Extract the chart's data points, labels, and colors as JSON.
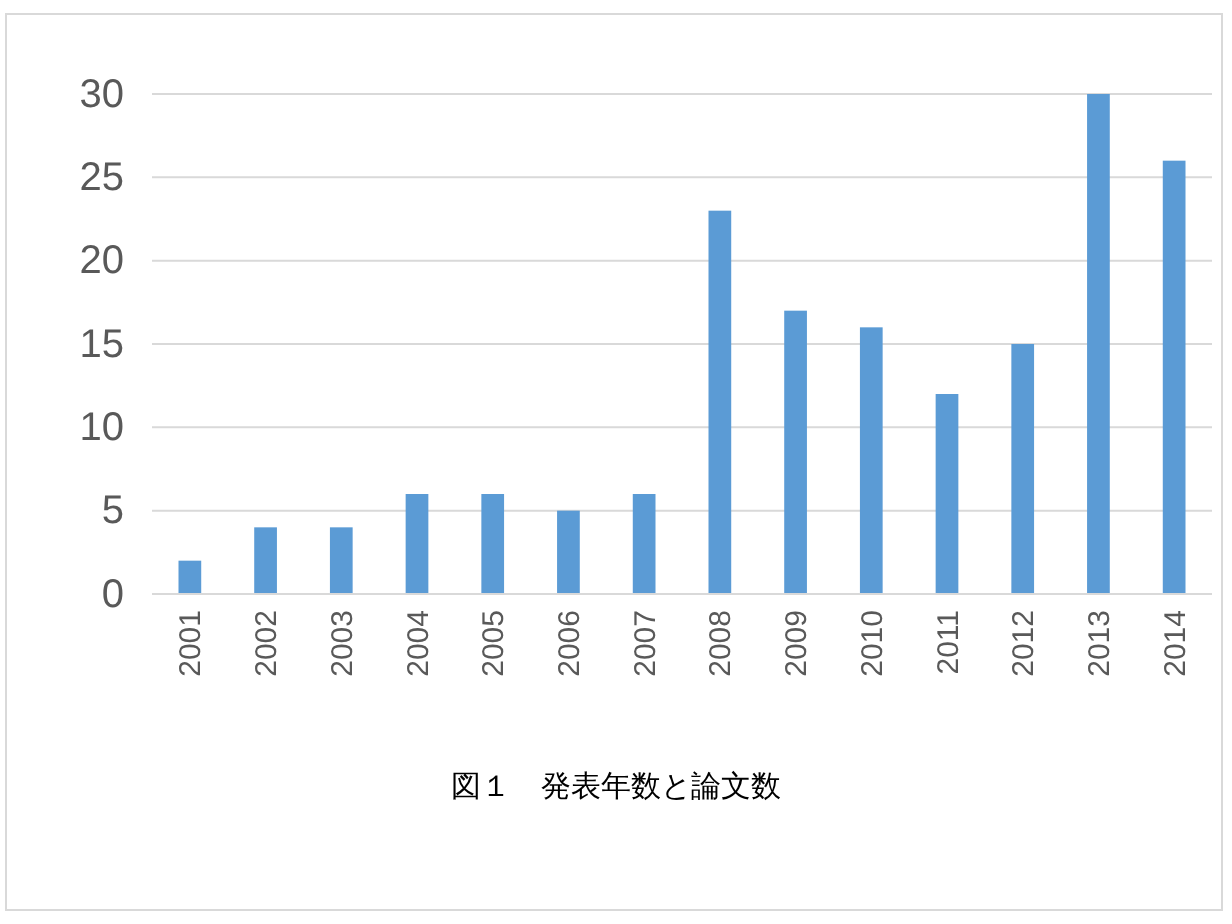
{
  "chart_data": {
    "type": "bar",
    "annotations": [
      "図１　発表年数と論文数"
    ],
    "categories": [
      "2001",
      "2002",
      "2003",
      "2004",
      "2005",
      "2006",
      "2007",
      "2008",
      "2009",
      "2010",
      "2011",
      "2012",
      "2013",
      "2014"
    ],
    "values": [
      2,
      4,
      4,
      6,
      6,
      5,
      6,
      23,
      17,
      16,
      12,
      15,
      30,
      26
    ],
    "color": "#5b9bd5",
    "ylim": [
      0,
      30
    ],
    "yticks": [
      0,
      5,
      10,
      15,
      20,
      25,
      30
    ],
    "grid": "y"
  }
}
